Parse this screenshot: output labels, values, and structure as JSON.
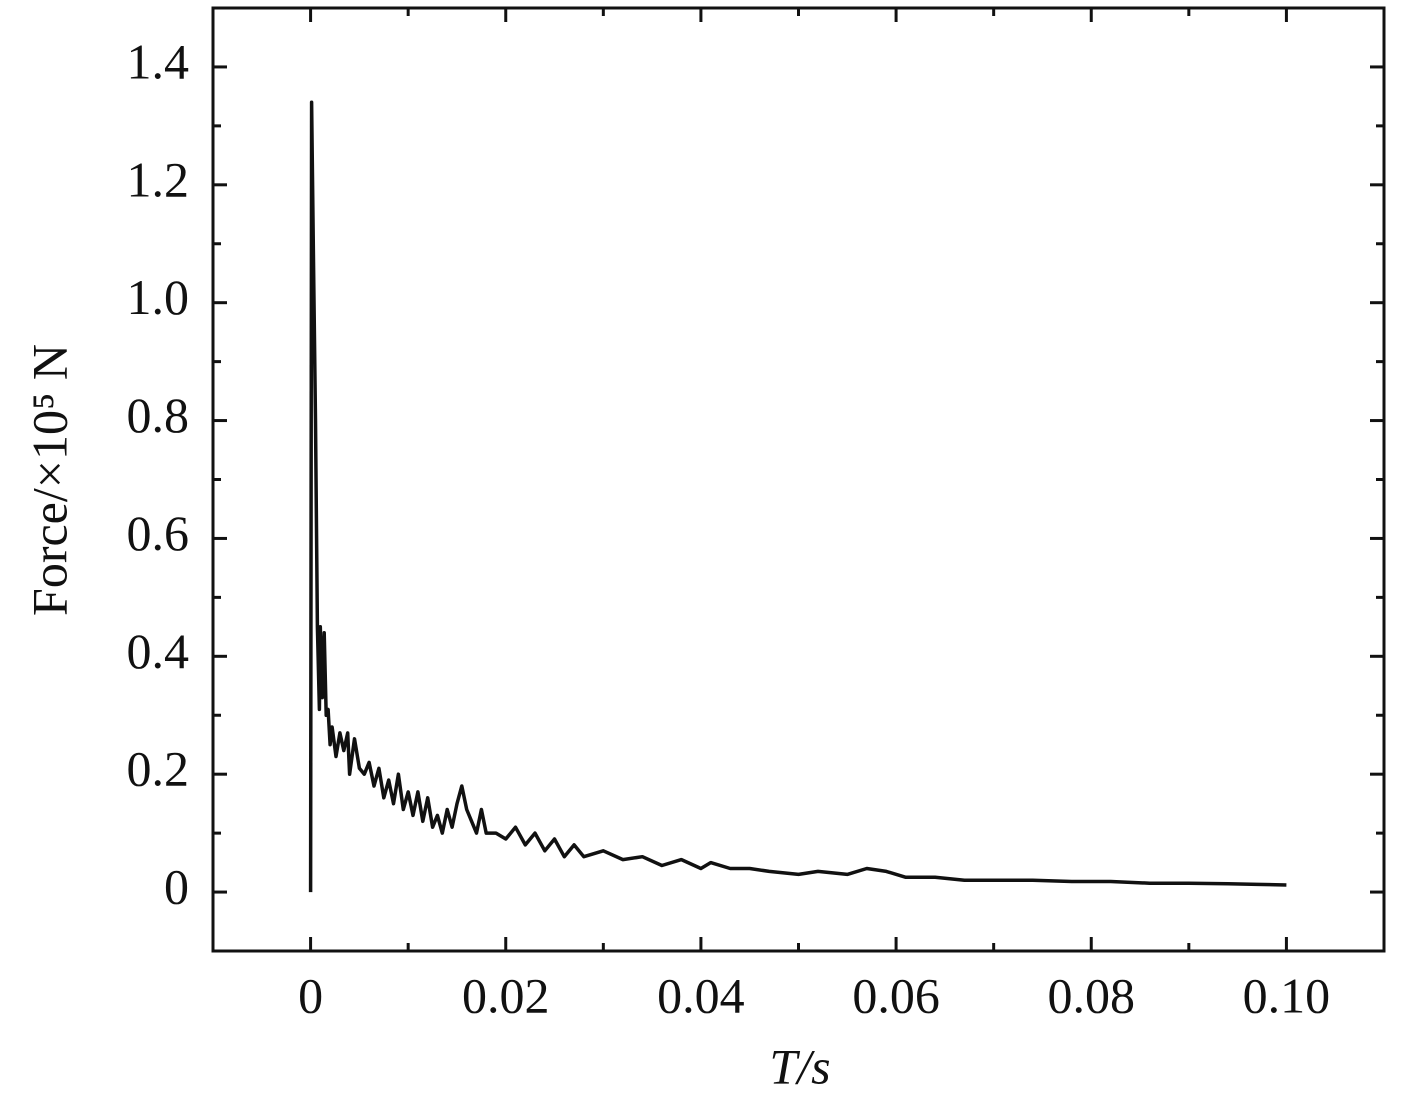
{
  "chart_data": {
    "type": "line",
    "x_label": "T/s",
    "y_label": "Force/×10⁵ N",
    "xlim": [
      -0.01,
      0.11
    ],
    "ylim": [
      -0.1,
      1.5
    ],
    "xticks": [
      0,
      0.02,
      0.04,
      0.06,
      0.08,
      {
        "value": 0.1,
        "label": "0.10"
      }
    ],
    "yticks": [
      0,
      0.2,
      0.4,
      0.6,
      0.8,
      {
        "value": 1.0,
        "label": "1.0"
      },
      1.2,
      1.4
    ],
    "xminorticks": [
      0.01,
      0.03,
      0.05,
      0.07,
      0.09
    ],
    "yminorticks": [
      0.1,
      0.3,
      0.5,
      0.7,
      0.9,
      1.1,
      1.3
    ],
    "series": [
      {
        "color": "#111111",
        "x": [
          0,
          0.0001,
          0.0003,
          0.0005,
          0.0007,
          0.0009,
          0.001,
          0.0012,
          0.0014,
          0.0016,
          0.0018,
          0.002,
          0.0022,
          0.0026,
          0.003,
          0.0034,
          0.0038,
          0.004,
          0.0045,
          0.005,
          0.0055,
          0.006,
          0.0065,
          0.007,
          0.0075,
          0.008,
          0.0085,
          0.009,
          0.0095,
          0.01,
          0.0105,
          0.011,
          0.0115,
          0.012,
          0.0125,
          0.013,
          0.0135,
          0.014,
          0.0145,
          0.015,
          0.0155,
          0.016,
          0.0165,
          0.017,
          0.0175,
          0.018,
          0.019,
          0.02,
          0.021,
          0.022,
          0.023,
          0.024,
          0.025,
          0.026,
          0.027,
          0.028,
          0.03,
          0.032,
          0.034,
          0.036,
          0.038,
          0.04,
          0.041,
          0.043,
          0.045,
          0.047,
          0.05,
          0.052,
          0.055,
          0.057,
          0.059,
          0.061,
          0.064,
          0.067,
          0.07,
          0.074,
          0.078,
          0.082,
          0.086,
          0.09,
          0.094,
          0.097,
          0.1
        ],
        "values": [
          0,
          1.34,
          1.07,
          0.8,
          0.45,
          0.31,
          0.45,
          0.33,
          0.44,
          0.3,
          0.31,
          0.25,
          0.28,
          0.23,
          0.27,
          0.24,
          0.27,
          0.2,
          0.26,
          0.21,
          0.2,
          0.22,
          0.18,
          0.21,
          0.16,
          0.19,
          0.15,
          0.2,
          0.14,
          0.17,
          0.13,
          0.17,
          0.12,
          0.16,
          0.11,
          0.13,
          0.1,
          0.14,
          0.11,
          0.15,
          0.18,
          0.14,
          0.12,
          0.1,
          0.14,
          0.1,
          0.1,
          0.09,
          0.11,
          0.08,
          0.1,
          0.07,
          0.09,
          0.06,
          0.08,
          0.06,
          0.07,
          0.055,
          0.06,
          0.045,
          0.055,
          0.04,
          0.05,
          0.04,
          0.04,
          0.035,
          0.03,
          0.035,
          0.03,
          0.04,
          0.035,
          0.025,
          0.025,
          0.02,
          0.02,
          0.02,
          0.018,
          0.018,
          0.015,
          0.015,
          0.014,
          0.013,
          0.012
        ]
      }
    ]
  }
}
